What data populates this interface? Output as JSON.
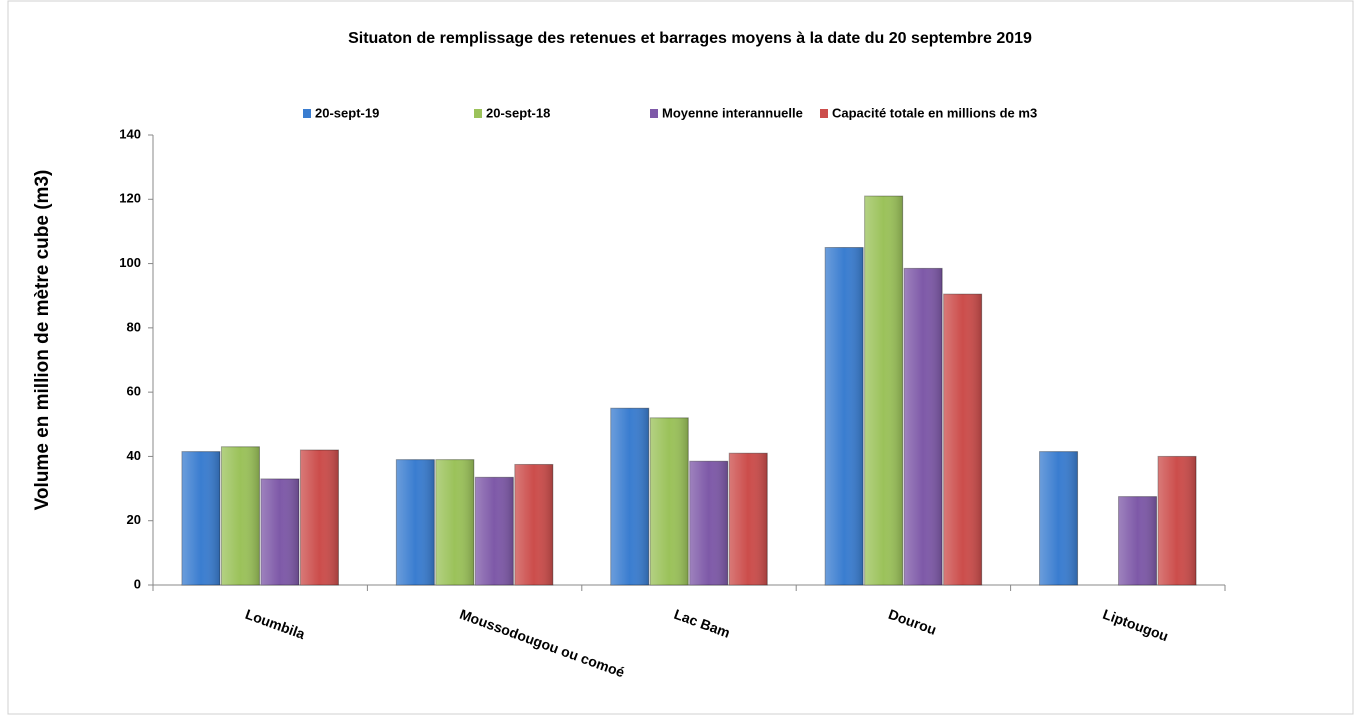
{
  "chart_data": {
    "type": "bar",
    "title": "Situaton de remplissage des retenues et barrages moyens à la date du 20 septembre 2019",
    "y_label": "Volume en million de mètre cube (m3)",
    "categories": [
      "Loumbila",
      "Moussodougou ou comoé",
      "Lac Bam",
      "Dourou",
      "Liptougou"
    ],
    "series": [
      {
        "name": "20-sept-19",
        "color": "#3a7dd0",
        "values": [
          41.5,
          39,
          55,
          105,
          41.5
        ]
      },
      {
        "name": "20-sept-18",
        "color": "#9bc25a",
        "values": [
          43,
          39,
          52,
          121,
          null
        ]
      },
      {
        "name": "Moyenne interannuelle",
        "color": "#7e59a8",
        "values": [
          33,
          33.5,
          38.5,
          98.5,
          27.5
        ]
      },
      {
        "name": "Capacité totale en millions de m3",
        "color": "#cc4d4b",
        "values": [
          42,
          37.5,
          41,
          90.5,
          40
        ]
      }
    ],
    "ylim": [
      0,
      140
    ],
    "yticks": [
      0,
      20,
      40,
      60,
      80,
      100,
      120,
      140
    ],
    "legend": "top"
  }
}
